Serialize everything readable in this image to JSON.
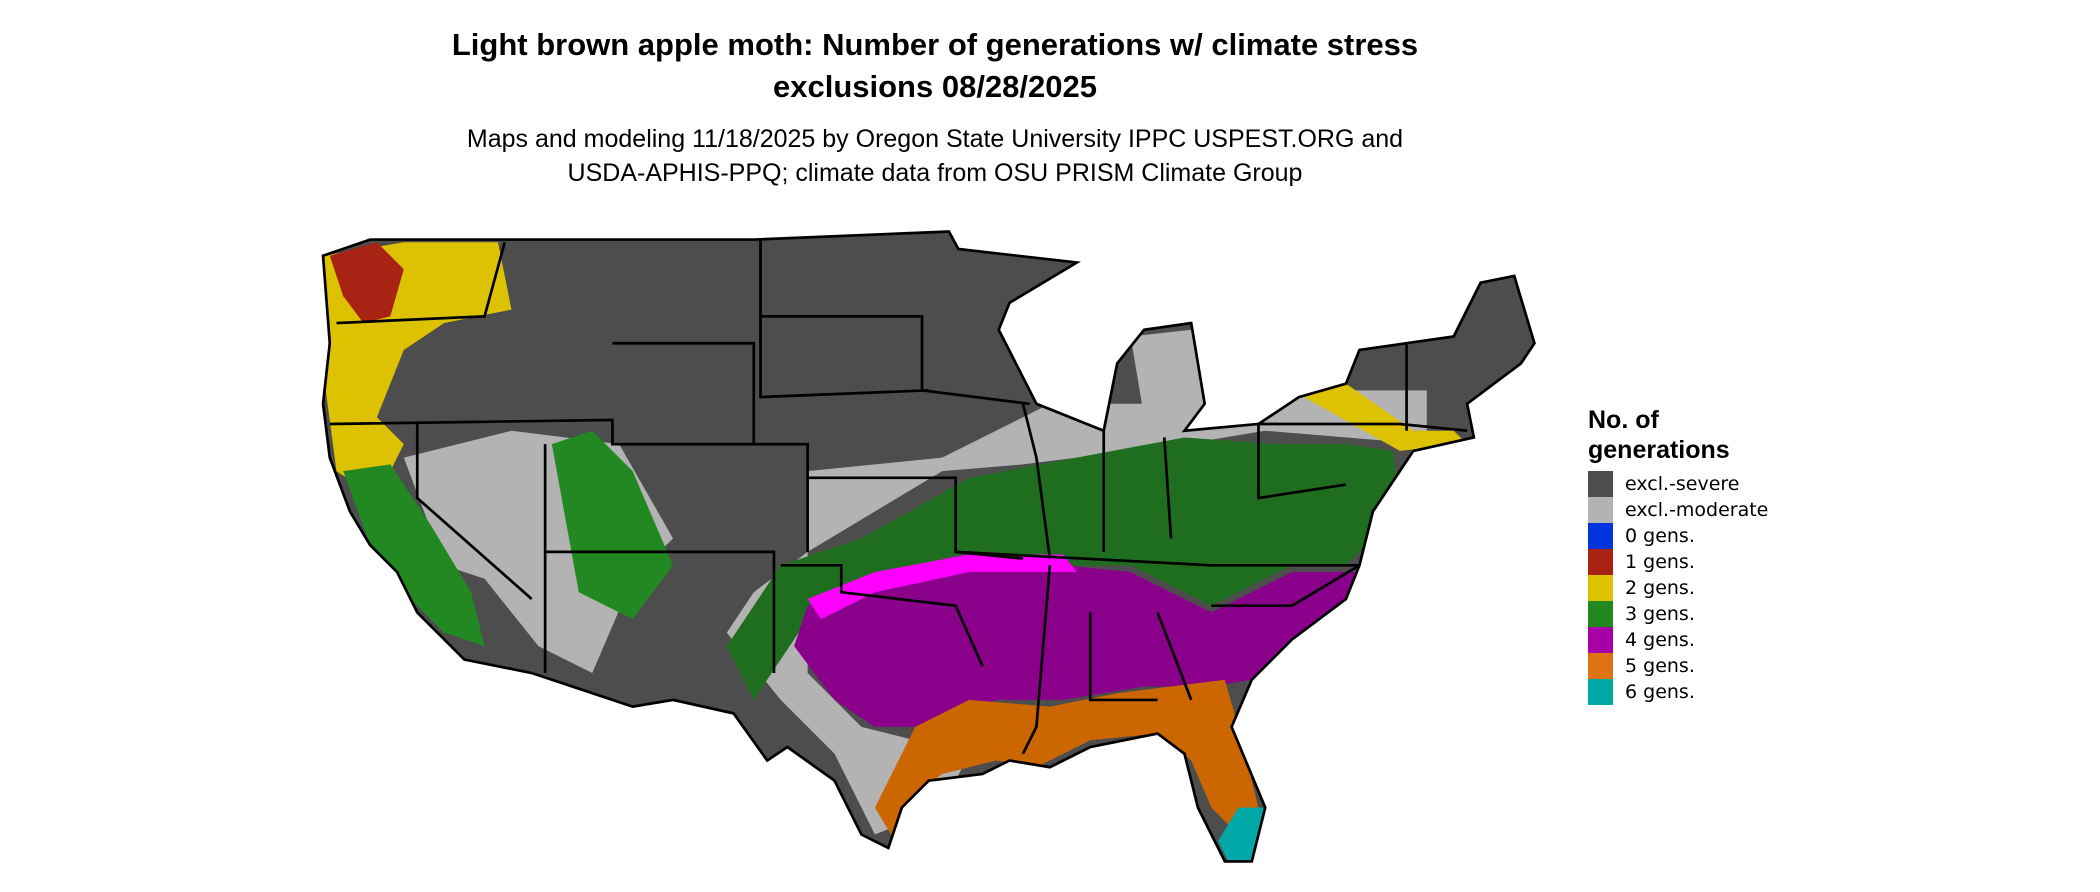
{
  "chart_data": {
    "type": "map",
    "title": "Light brown apple moth: Number of generations w/ climate stress exclusions 08/28/2025",
    "title_lines": [
      "Light brown apple moth: Number of generations w/ climate stress",
      "exclusions 08/28/2025"
    ],
    "subtitle_lines": [
      "Maps and modeling 11/18/2025 by Oregon State University IPPC USPEST.ORG and",
      "USDA-APHIS-PPQ; climate data from OSU PRISM Climate Group"
    ],
    "region": "Contiguous United States",
    "legend": {
      "title_lines": [
        "No. of",
        "generations"
      ],
      "placement": "right",
      "items": [
        {
          "label": "excl.-severe",
          "color": "#4d4d4d"
        },
        {
          "label": "excl.-moderate",
          "color": "#b3b3b3"
        },
        {
          "label": "0 gens.",
          "color": "#0033dd"
        },
        {
          "label": "1 gens.",
          "color": "#a82314"
        },
        {
          "label": "2 gens.",
          "color": "#dcc200"
        },
        {
          "label": "3 gens.",
          "color": "#228822"
        },
        {
          "label": "4 gens.",
          "color": "#a600a6"
        },
        {
          "label": "5 gens.",
          "color": "#dd7314"
        },
        {
          "label": "6 gens.",
          "color": "#00a8a8"
        }
      ]
    }
  }
}
